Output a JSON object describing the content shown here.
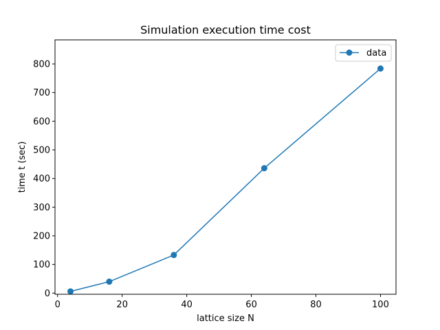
{
  "chart_data": {
    "type": "line",
    "title": "Simulation execution time cost",
    "xlabel": "lattice size N",
    "ylabel": "time t (sec)",
    "xlim": [
      -0.8,
      104.8
    ],
    "ylim": [
      -4,
      884
    ],
    "xticks": [
      0,
      20,
      40,
      60,
      80,
      100
    ],
    "yticks": [
      0,
      100,
      200,
      300,
      400,
      500,
      600,
      700,
      800
    ],
    "grid": false,
    "legend_position": "upper right",
    "series": [
      {
        "name": "data",
        "color": "#1f77b4",
        "marker": "circle",
        "x": [
          4,
          16,
          36,
          64,
          100
        ],
        "y": [
          6,
          40,
          133,
          436,
          784
        ]
      }
    ]
  }
}
